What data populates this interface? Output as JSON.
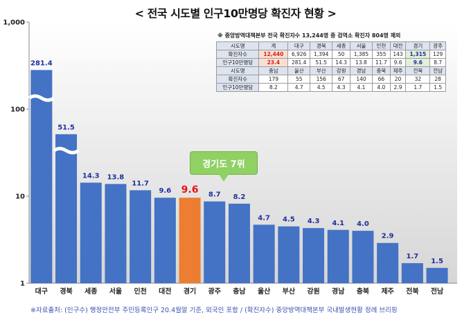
{
  "title": "< 전국 시도별 인구10만명당 확진자 현황 >",
  "source_note": "※자료출처: (인구수) 행정안전부 주민등록인구 20.4월말 기준, 외국인 포함 / (확진자수) 중앙방역대책본부 국내발생현황 정례 브리핑",
  "callout": "경기도 7위",
  "chart_data": {
    "type": "bar",
    "scale": "log",
    "ylim": [
      1,
      1000
    ],
    "y_ticks": [
      "1",
      "10",
      "100",
      "1,000"
    ],
    "categories": [
      "대구",
      "경북",
      "세종",
      "서울",
      "인천",
      "대전",
      "경기",
      "광주",
      "충남",
      "울산",
      "부산",
      "강원",
      "경남",
      "충북",
      "제주",
      "전북",
      "전남"
    ],
    "values": [
      281.4,
      51.5,
      14.3,
      13.8,
      11.7,
      9.6,
      9.6,
      8.7,
      8.2,
      4.7,
      4.5,
      4.3,
      4.1,
      4.0,
      2.9,
      1.7,
      1.5
    ],
    "labels": [
      "281.4",
      "51.5",
      "14.3",
      "13.8",
      "11.7",
      "9.6",
      "9.6",
      "8.7",
      "8.2",
      "4.7",
      "4.5",
      "4.3",
      "4.1",
      "4.0",
      "2.9",
      "1.7",
      "1.5"
    ],
    "highlight_category": "경기",
    "axis_breaks": [
      "대구",
      "경북"
    ],
    "colors": {
      "bar": "#4472c4",
      "highlight": "#ed7d31",
      "label": "#1f2f9e",
      "highlight_label": "#e8111a"
    }
  },
  "table": {
    "note": "※ 중앙방역대책본부 전국 확진자수 13,244명 중 검역소 확진자 804명 제외",
    "rows": [
      [
        "시도명",
        "계",
        "대구",
        "경북",
        "세종",
        "서울",
        "인천",
        "대전",
        "경기",
        "광주"
      ],
      [
        "확진자수",
        "12,440",
        "6,926",
        "1,394",
        "50",
        "1,385",
        "355",
        "143",
        "1,315",
        "129"
      ],
      [
        "인구10만명당",
        "23.4",
        "281.4",
        "51.5",
        "14.3",
        "13.8",
        "11.7",
        "9.6",
        "9.6",
        "8.7"
      ],
      [
        "시도명",
        "충남",
        "울산",
        "부산",
        "강원",
        "경남",
        "충북",
        "제주",
        "전북",
        "전남"
      ],
      [
        "확진자수",
        "179",
        "55",
        "156",
        "67",
        "140",
        "66",
        "20",
        "32",
        "28"
      ],
      [
        "인구10만명당",
        "8.2",
        "4.7",
        "4.5",
        "4.3",
        "4.1",
        "4.0",
        "2.9",
        "1.7",
        "1.5"
      ]
    ]
  }
}
